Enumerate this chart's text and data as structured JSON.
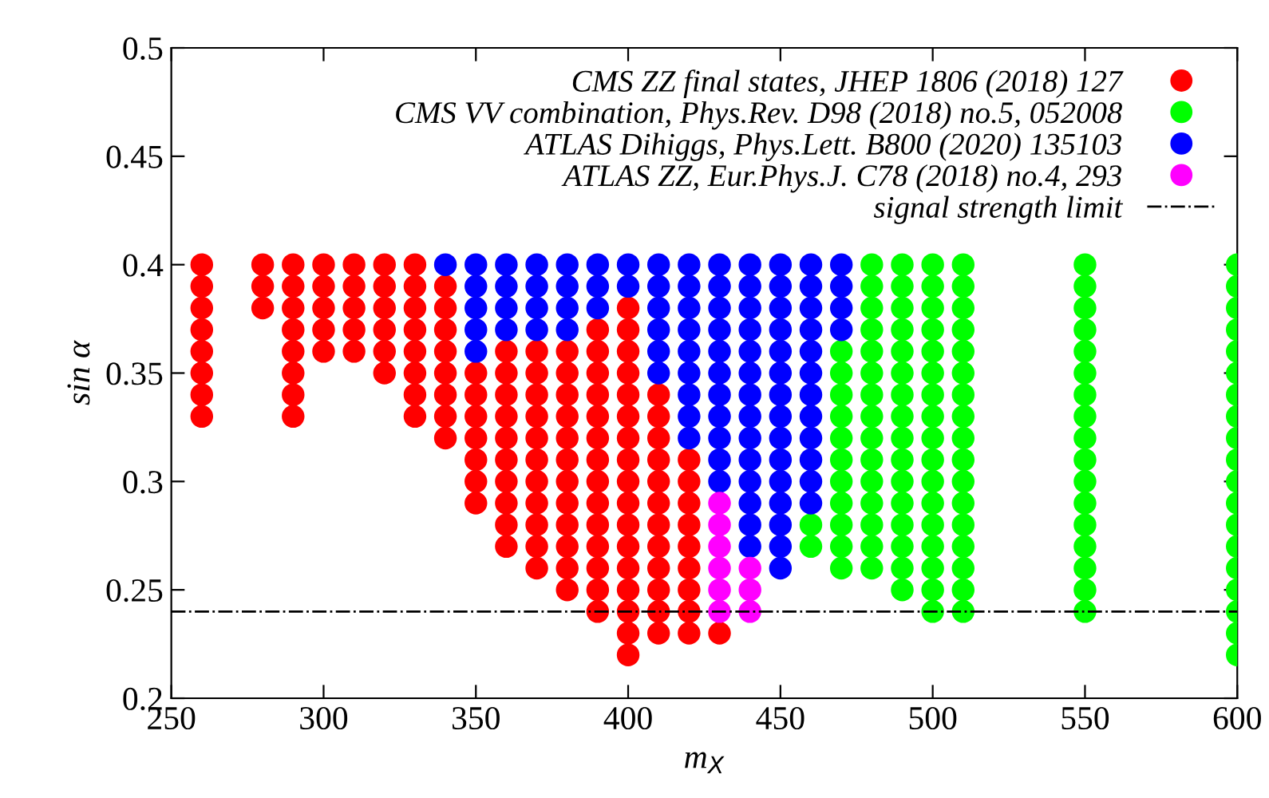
{
  "chart_data": {
    "type": "scatter",
    "xlabel": "m$_{X}$",
    "ylabel": "sin α",
    "xlim": [
      250,
      600
    ],
    "xticks": [
      250,
      300,
      350,
      400,
      450,
      500,
      550,
      600
    ],
    "ylim": [
      0.2,
      0.5
    ],
    "yticks": [
      0.2,
      0.25,
      0.3,
      0.35,
      0.4,
      0.45,
      0.5
    ],
    "grid": false,
    "legend": "top right",
    "marker": "circle",
    "ref_lines": [
      {
        "axis": "y",
        "value": 0.24,
        "label": "signal strength limit",
        "color": "#000000",
        "line_style": "dashdot"
      }
    ],
    "series": [
      {
        "name": "CMS ZZ final states, JHEP 1806 (2018) 127",
        "color": "#ff0000",
        "x": [
          260,
          260,
          260,
          260,
          260,
          260,
          260,
          260,
          280,
          280,
          280,
          290,
          290,
          290,
          290,
          290,
          290,
          290,
          290,
          300,
          300,
          300,
          300,
          300,
          310,
          310,
          310,
          310,
          310,
          320,
          320,
          320,
          320,
          320,
          320,
          330,
          330,
          330,
          330,
          330,
          330,
          330,
          330,
          340,
          340,
          340,
          340,
          340,
          340,
          340,
          340,
          350,
          350,
          350,
          350,
          350,
          350,
          350,
          360,
          360,
          360,
          360,
          360,
          360,
          360,
          360,
          360,
          360,
          370,
          370,
          370,
          370,
          370,
          370,
          370,
          370,
          370,
          370,
          370,
          380,
          380,
          380,
          380,
          380,
          380,
          380,
          380,
          380,
          380,
          380,
          380,
          390,
          390,
          390,
          390,
          390,
          390,
          390,
          390,
          390,
          390,
          390,
          390,
          390,
          390,
          400,
          400,
          400,
          400,
          400,
          400,
          400,
          400,
          400,
          400,
          400,
          400,
          400,
          400,
          400,
          400,
          400,
          410,
          410,
          410,
          410,
          410,
          410,
          410,
          410,
          410,
          410,
          410,
          410,
          420,
          420,
          420,
          420,
          420,
          420,
          420,
          420,
          420,
          430
        ],
        "values": [
          0.4,
          0.39,
          0.38,
          0.37,
          0.36,
          0.35,
          0.34,
          0.33,
          0.4,
          0.39,
          0.38,
          0.4,
          0.39,
          0.38,
          0.37,
          0.36,
          0.35,
          0.34,
          0.33,
          0.4,
          0.39,
          0.38,
          0.37,
          0.36,
          0.4,
          0.39,
          0.38,
          0.37,
          0.36,
          0.4,
          0.39,
          0.38,
          0.37,
          0.36,
          0.35,
          0.4,
          0.39,
          0.38,
          0.37,
          0.36,
          0.35,
          0.34,
          0.33,
          0.39,
          0.38,
          0.37,
          0.36,
          0.35,
          0.34,
          0.33,
          0.32,
          0.35,
          0.34,
          0.33,
          0.32,
          0.31,
          0.3,
          0.29,
          0.36,
          0.35,
          0.34,
          0.33,
          0.32,
          0.31,
          0.3,
          0.29,
          0.28,
          0.27,
          0.36,
          0.35,
          0.34,
          0.33,
          0.32,
          0.31,
          0.3,
          0.29,
          0.28,
          0.27,
          0.26,
          0.36,
          0.35,
          0.34,
          0.33,
          0.32,
          0.31,
          0.3,
          0.29,
          0.28,
          0.27,
          0.26,
          0.25,
          0.37,
          0.36,
          0.35,
          0.34,
          0.33,
          0.32,
          0.31,
          0.3,
          0.29,
          0.28,
          0.27,
          0.26,
          0.25,
          0.24,
          0.38,
          0.37,
          0.36,
          0.35,
          0.34,
          0.33,
          0.32,
          0.31,
          0.3,
          0.29,
          0.28,
          0.27,
          0.26,
          0.25,
          0.24,
          0.23,
          0.22,
          0.34,
          0.33,
          0.32,
          0.31,
          0.3,
          0.29,
          0.28,
          0.27,
          0.26,
          0.25,
          0.24,
          0.23,
          0.31,
          0.3,
          0.29,
          0.28,
          0.27,
          0.26,
          0.25,
          0.24,
          0.23,
          0.23
        ]
      },
      {
        "name": "CMS VV combination, Phys.Rev. D98 (2018) no.5, 052008",
        "color": "#00ff00",
        "x": [
          460,
          460,
          470,
          470,
          470,
          470,
          470,
          470,
          470,
          470,
          470,
          470,
          470,
          480,
          480,
          480,
          480,
          480,
          480,
          480,
          480,
          480,
          480,
          480,
          480,
          480,
          480,
          480,
          490,
          490,
          490,
          490,
          490,
          490,
          490,
          490,
          490,
          490,
          490,
          490,
          490,
          490,
          490,
          490,
          500,
          500,
          500,
          500,
          500,
          500,
          500,
          500,
          500,
          500,
          500,
          500,
          500,
          500,
          500,
          500,
          500,
          510,
          510,
          510,
          510,
          510,
          510,
          510,
          510,
          510,
          510,
          510,
          510,
          510,
          510,
          510,
          510,
          510,
          550,
          550,
          550,
          550,
          550,
          550,
          550,
          550,
          550,
          550,
          550,
          550,
          550,
          550,
          550,
          550,
          550,
          600,
          600,
          600,
          600,
          600,
          600,
          600,
          600,
          600,
          600,
          600,
          600,
          600,
          600,
          600,
          600,
          600,
          600,
          600
        ],
        "values": [
          0.28,
          0.27,
          0.36,
          0.35,
          0.34,
          0.33,
          0.32,
          0.31,
          0.3,
          0.29,
          0.28,
          0.27,
          0.26,
          0.4,
          0.39,
          0.38,
          0.37,
          0.36,
          0.35,
          0.34,
          0.33,
          0.32,
          0.31,
          0.3,
          0.29,
          0.28,
          0.27,
          0.26,
          0.4,
          0.39,
          0.38,
          0.37,
          0.36,
          0.35,
          0.34,
          0.33,
          0.32,
          0.31,
          0.3,
          0.29,
          0.28,
          0.27,
          0.26,
          0.25,
          0.4,
          0.39,
          0.38,
          0.37,
          0.36,
          0.35,
          0.34,
          0.33,
          0.32,
          0.31,
          0.3,
          0.29,
          0.28,
          0.27,
          0.26,
          0.25,
          0.24,
          0.4,
          0.39,
          0.38,
          0.37,
          0.36,
          0.35,
          0.34,
          0.33,
          0.32,
          0.31,
          0.3,
          0.29,
          0.28,
          0.27,
          0.26,
          0.25,
          0.24,
          0.4,
          0.39,
          0.38,
          0.37,
          0.36,
          0.35,
          0.34,
          0.33,
          0.32,
          0.31,
          0.3,
          0.29,
          0.28,
          0.27,
          0.26,
          0.25,
          0.24,
          0.4,
          0.39,
          0.38,
          0.37,
          0.36,
          0.35,
          0.34,
          0.33,
          0.32,
          0.31,
          0.3,
          0.29,
          0.28,
          0.27,
          0.26,
          0.25,
          0.24,
          0.23,
          0.22
        ]
      },
      {
        "name": "ATLAS Dihiggs, Phys.Lett. B800 (2020) 135103",
        "color": "#0000ff",
        "x": [
          340,
          350,
          350,
          350,
          350,
          350,
          360,
          360,
          360,
          360,
          370,
          370,
          370,
          370,
          380,
          380,
          380,
          380,
          390,
          390,
          390,
          400,
          400,
          410,
          410,
          410,
          410,
          410,
          410,
          420,
          420,
          420,
          420,
          420,
          420,
          420,
          420,
          420,
          430,
          430,
          430,
          430,
          430,
          430,
          430,
          430,
          430,
          430,
          430,
          440,
          440,
          440,
          440,
          440,
          440,
          440,
          440,
          440,
          440,
          440,
          440,
          440,
          440,
          450,
          450,
          450,
          450,
          450,
          450,
          450,
          450,
          450,
          450,
          450,
          450,
          450,
          450,
          450,
          460,
          460,
          460,
          460,
          460,
          460,
          460,
          460,
          460,
          460,
          460,
          460,
          470,
          470,
          470,
          470
        ],
        "values": [
          0.4,
          0.4,
          0.39,
          0.38,
          0.37,
          0.36,
          0.4,
          0.39,
          0.38,
          0.37,
          0.4,
          0.39,
          0.38,
          0.37,
          0.4,
          0.39,
          0.38,
          0.37,
          0.4,
          0.39,
          0.38,
          0.4,
          0.39,
          0.4,
          0.39,
          0.38,
          0.37,
          0.36,
          0.35,
          0.4,
          0.39,
          0.38,
          0.37,
          0.36,
          0.35,
          0.34,
          0.33,
          0.32,
          0.4,
          0.39,
          0.38,
          0.37,
          0.36,
          0.35,
          0.34,
          0.33,
          0.32,
          0.31,
          0.3,
          0.4,
          0.39,
          0.38,
          0.37,
          0.36,
          0.35,
          0.34,
          0.33,
          0.32,
          0.31,
          0.3,
          0.29,
          0.28,
          0.27,
          0.4,
          0.39,
          0.38,
          0.37,
          0.36,
          0.35,
          0.34,
          0.33,
          0.32,
          0.31,
          0.3,
          0.29,
          0.28,
          0.27,
          0.26,
          0.4,
          0.39,
          0.38,
          0.37,
          0.36,
          0.35,
          0.34,
          0.33,
          0.32,
          0.31,
          0.3,
          0.29,
          0.4,
          0.39,
          0.38,
          0.37
        ]
      },
      {
        "name": "ATLAS ZZ, Eur.Phys.J. C78 (2018) no.4, 293",
        "color": "#ff00ff",
        "x": [
          430,
          430,
          430,
          430,
          430,
          430,
          440,
          440,
          440
        ],
        "values": [
          0.29,
          0.28,
          0.27,
          0.26,
          0.25,
          0.24,
          0.26,
          0.25,
          0.24
        ]
      }
    ]
  }
}
